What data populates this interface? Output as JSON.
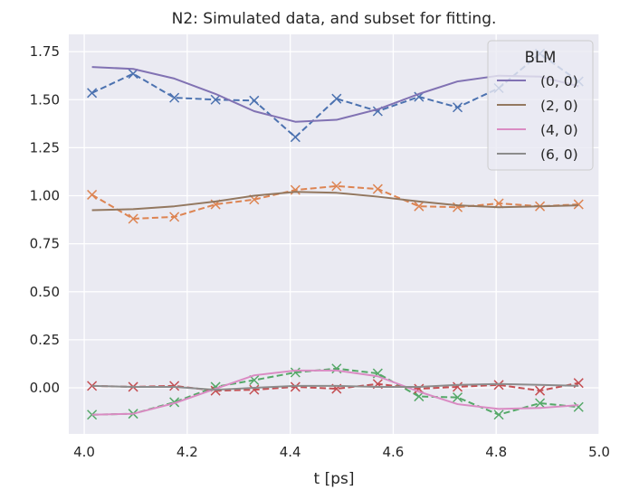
{
  "chart_data": {
    "type": "line",
    "title": "N2: Simulated data, and subset for fitting.",
    "xlabel": "t [ps]",
    "ylabel": "",
    "xlim": [
      3.97,
      5.0
    ],
    "ylim": [
      -0.24,
      1.84
    ],
    "xticks": [
      4.0,
      4.2,
      4.4,
      4.6,
      4.8,
      5.0
    ],
    "xtick_labels": [
      "4.0",
      "4.2",
      "4.4",
      "4.6",
      "4.8",
      "5.0"
    ],
    "yticks": [
      0.0,
      0.25,
      0.5,
      0.75,
      1.0,
      1.25,
      1.5,
      1.75
    ],
    "ytick_labels": [
      "0.00",
      "0.25",
      "0.50",
      "0.75",
      "1.00",
      "1.25",
      "1.50",
      "1.75"
    ],
    "grid": true,
    "background": "#eaeaf2",
    "legend": {
      "title": "BLM",
      "position": "top-right",
      "entries": [
        {
          "label": "(0, 0)",
          "color": "#8172b3"
        },
        {
          "label": "(2, 0)",
          "color": "#937860"
        },
        {
          "label": "(4, 0)",
          "color": "#da8bc3"
        },
        {
          "label": "(6, 0)",
          "color": "#8c8c8c"
        }
      ]
    },
    "x": [
      4.015,
      4.095,
      4.175,
      4.255,
      4.33,
      4.41,
      4.49,
      4.57,
      4.65,
      4.725,
      4.805,
      4.885,
      4.96
    ],
    "series": [
      {
        "name": "(0, 0)",
        "style": "solid",
        "color": "#8172b3",
        "values": [
          1.67,
          1.66,
          1.61,
          1.53,
          1.44,
          1.385,
          1.395,
          1.45,
          1.53,
          1.595,
          1.625,
          1.62,
          1.57
        ]
      },
      {
        "name": "(2, 0)",
        "style": "solid",
        "color": "#937860",
        "values": [
          0.925,
          0.93,
          0.945,
          0.97,
          1.0,
          1.02,
          1.015,
          0.995,
          0.97,
          0.95,
          0.94,
          0.945,
          0.95
        ]
      },
      {
        "name": "(4, 0)",
        "style": "solid",
        "color": "#da8bc3",
        "values": [
          -0.14,
          -0.135,
          -0.08,
          -0.005,
          0.065,
          0.09,
          0.09,
          0.06,
          -0.02,
          -0.085,
          -0.11,
          -0.105,
          -0.09
        ]
      },
      {
        "name": "(6, 0)",
        "style": "solid",
        "color": "#8c8c8c",
        "values": [
          0.01,
          0.005,
          0.005,
          -0.01,
          0.0,
          0.01,
          0.01,
          0.005,
          0.005,
          0.015,
          0.02,
          0.015,
          0.01
        ]
      },
      {
        "style": "dashed-x",
        "color": "#4c72b0",
        "values": [
          1.535,
          1.635,
          1.51,
          1.5,
          1.495,
          1.305,
          1.505,
          1.44,
          1.515,
          1.46,
          1.56,
          1.74,
          1.595
        ]
      },
      {
        "style": "dashed-x",
        "color": "#dd8452",
        "values": [
          1.005,
          0.88,
          0.89,
          0.955,
          0.98,
          1.03,
          1.05,
          1.035,
          0.945,
          0.94,
          0.96,
          0.945,
          0.955
        ]
      },
      {
        "style": "dashed-x",
        "color": "#55a868",
        "values": [
          -0.14,
          -0.135,
          -0.075,
          0.005,
          0.04,
          0.08,
          0.1,
          0.075,
          -0.045,
          -0.05,
          -0.14,
          -0.08,
          -0.1
        ]
      },
      {
        "style": "dashed-x",
        "color": "#c44e52",
        "values": [
          0.01,
          0.005,
          0.01,
          -0.015,
          -0.01,
          0.005,
          -0.005,
          0.02,
          -0.005,
          0.005,
          0.015,
          -0.015,
          0.025
        ]
      }
    ]
  }
}
